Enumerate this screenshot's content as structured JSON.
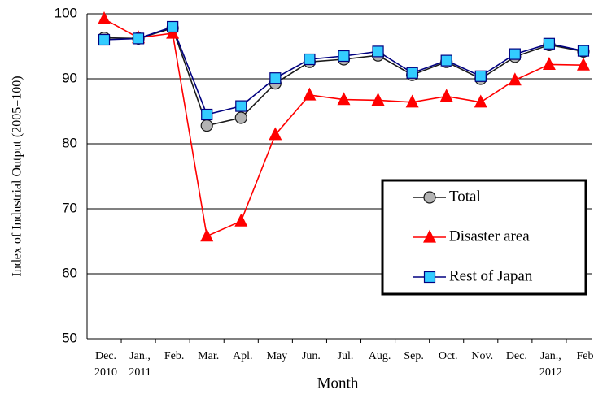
{
  "chart_data": {
    "type": "line",
    "y_label": "Index of Industrial Output (2005=100)",
    "x_label": "Month",
    "categories": [
      "Dec.\n2010",
      "Jan.,\n2011",
      "Feb.",
      "Mar.",
      "Apl.",
      "May",
      "Jun.",
      "Jul.",
      "Aug.",
      "Sep.",
      "Oct.",
      "Nov.",
      "Dec.",
      "Jan.,\n2012",
      "Feb"
    ],
    "series": [
      {
        "name": "Total",
        "color": "#1a1a1a",
        "marker": "circle",
        "marker_fill": "#b3b3b3",
        "values": [
          96.3,
          96.2,
          97.8,
          82.8,
          84.0,
          89.3,
          92.6,
          93.0,
          93.6,
          90.6,
          92.6,
          90.0,
          93.4,
          95.2,
          94.2
        ]
      },
      {
        "name": "Disaster area",
        "color": "#ff0000",
        "marker": "triangle",
        "marker_fill": "#ff0000",
        "values": [
          99.2,
          96.3,
          97.0,
          65.8,
          68.1,
          81.4,
          87.5,
          86.8,
          86.7,
          86.4,
          87.3,
          86.4,
          89.8,
          92.2,
          92.1
        ]
      },
      {
        "name": "Rest of Japan",
        "color": "#000080",
        "marker": "square",
        "marker_fill": "#33ccff",
        "values": [
          96.0,
          96.2,
          98.0,
          84.5,
          85.8,
          90.1,
          93.0,
          93.5,
          94.2,
          90.9,
          92.8,
          90.4,
          93.8,
          95.4,
          94.3
        ]
      }
    ],
    "ylim": [
      50,
      100
    ],
    "yticks": [
      50,
      60,
      70,
      80,
      90,
      100
    ],
    "grid": true,
    "legend": "lower right"
  }
}
